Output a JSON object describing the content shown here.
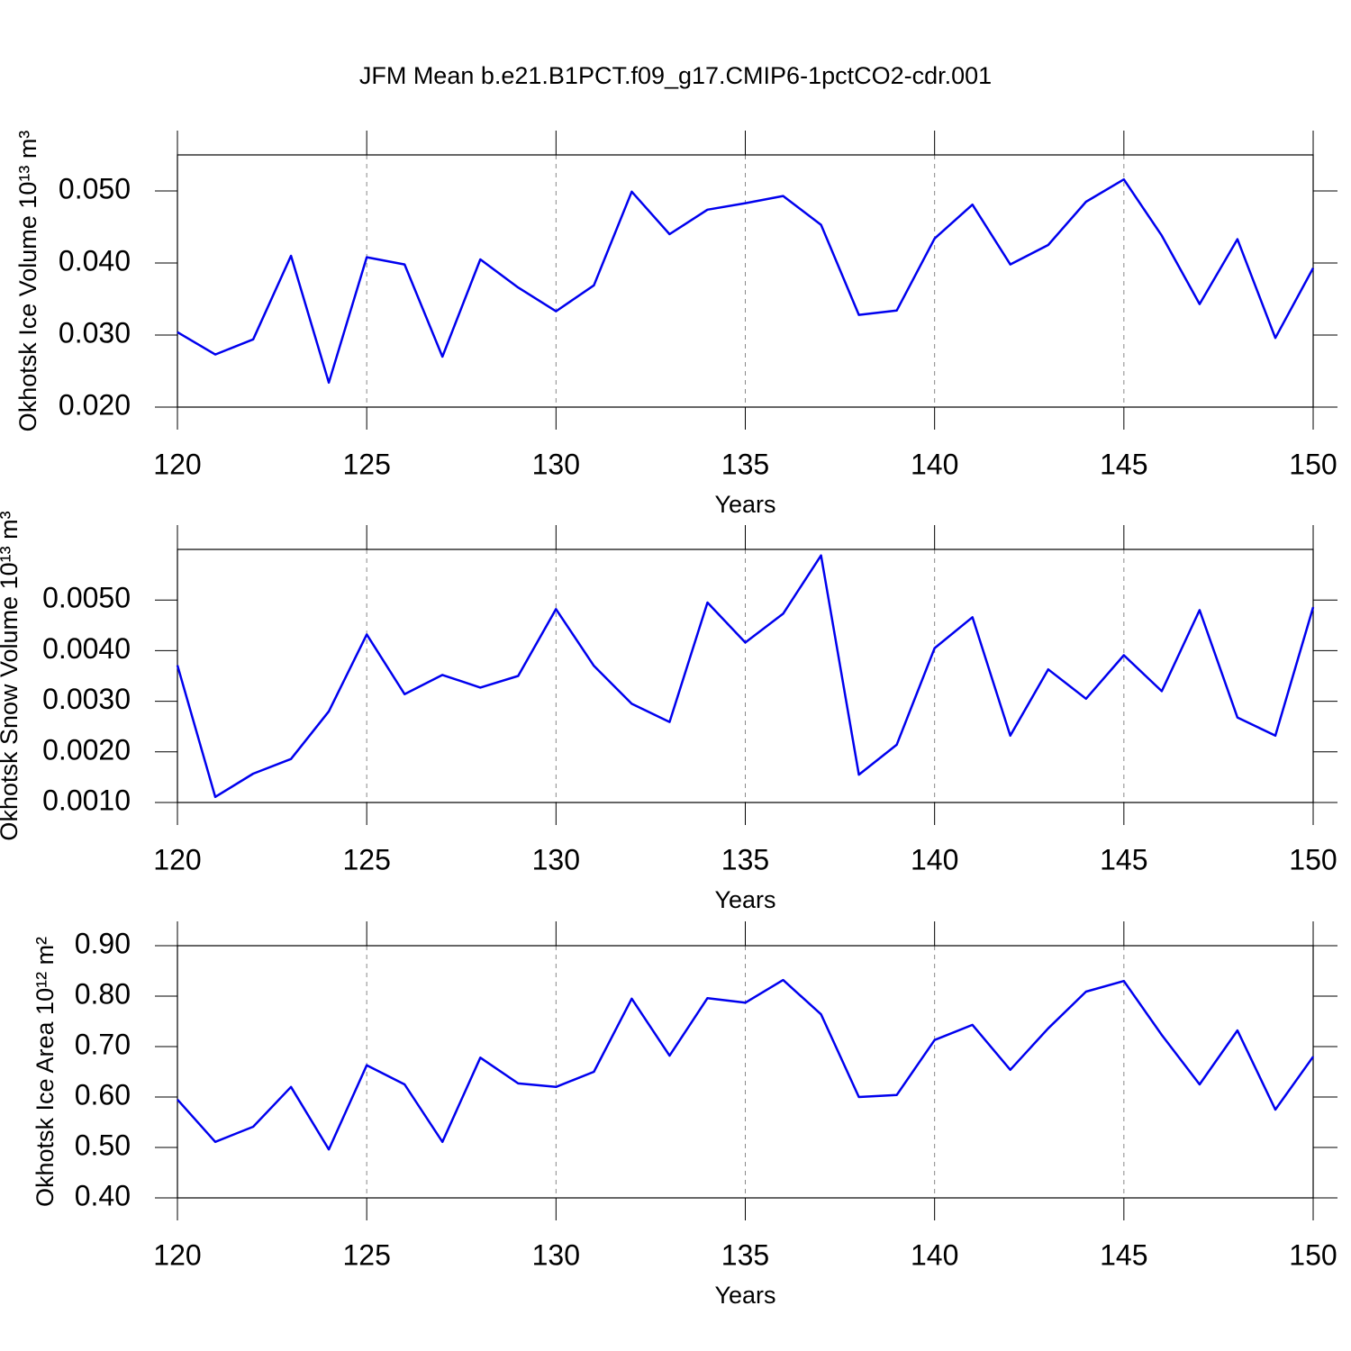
{
  "title": "JFM Mean b.e21.B1PCT.f09_g17.CMIP6-1pctCO2-cdr.001",
  "chart_data": [
    {
      "type": "line",
      "xlabel": "Years",
      "ylabel": "Okhotsk Ice Volume 10¹³ m³",
      "color": "#0000ee",
      "xgrid": true,
      "x": [
        120,
        121,
        122,
        123,
        124,
        125,
        126,
        127,
        128,
        129,
        130,
        131,
        132,
        133,
        134,
        135,
        136,
        137,
        138,
        139,
        140,
        141,
        142,
        143,
        144,
        145,
        146,
        147,
        148,
        149,
        150
      ],
      "values": [
        0.0304,
        0.0273,
        0.0294,
        0.041,
        0.0234,
        0.0408,
        0.0398,
        0.027,
        0.0405,
        0.0366,
        0.0333,
        0.0369,
        0.0499,
        0.044,
        0.0474,
        0.0483,
        0.0493,
        0.0453,
        0.0328,
        0.0334,
        0.0434,
        0.0481,
        0.0398,
        0.0425,
        0.0485,
        0.0516,
        0.0438,
        0.0343,
        0.0433,
        0.0296,
        0.0393
      ],
      "xlim": [
        120,
        150
      ],
      "xticks": [
        120,
        125,
        130,
        135,
        140,
        145,
        150
      ],
      "ylim": [
        0.02,
        0.055
      ],
      "yticks": [
        {
          "value": 0.02,
          "label": "0.020"
        },
        {
          "value": 0.03,
          "label": "0.030"
        },
        {
          "value": 0.04,
          "label": "0.040"
        },
        {
          "value": 0.05,
          "label": "0.050"
        }
      ]
    },
    {
      "type": "line",
      "xlabel": "Years",
      "ylabel": "Okhotsk Snow Volume 10¹³ m³",
      "color": "#0000ee",
      "xgrid": true,
      "x": [
        120,
        121,
        122,
        123,
        124,
        125,
        126,
        127,
        128,
        129,
        130,
        131,
        132,
        133,
        134,
        135,
        136,
        137,
        138,
        139,
        140,
        141,
        142,
        143,
        144,
        145,
        146,
        147,
        148,
        149,
        150
      ],
      "values": [
        0.00371,
        0.00111,
        0.00157,
        0.00186,
        0.0028,
        0.00432,
        0.00314,
        0.00352,
        0.00327,
        0.0035,
        0.00482,
        0.0037,
        0.00295,
        0.00259,
        0.00495,
        0.00416,
        0.00473,
        0.00588,
        0.00155,
        0.00214,
        0.00405,
        0.00466,
        0.00232,
        0.00363,
        0.00305,
        0.00391,
        0.0032,
        0.0048,
        0.00268,
        0.00232,
        0.00486
      ],
      "xlim": [
        120,
        150
      ],
      "xticks": [
        120,
        125,
        130,
        135,
        140,
        145,
        150
      ],
      "ylim": [
        0.001,
        0.006
      ],
      "yticks": [
        {
          "value": 0.001,
          "label": "0.0010"
        },
        {
          "value": 0.002,
          "label": "0.0020"
        },
        {
          "value": 0.003,
          "label": "0.0030"
        },
        {
          "value": 0.004,
          "label": "0.0040"
        },
        {
          "value": 0.005,
          "label": "0.0050"
        }
      ]
    },
    {
      "type": "line",
      "xlabel": "Years",
      "ylabel": "Okhotsk Ice Area 10¹² m²",
      "color": "#0000ee",
      "xgrid": true,
      "x": [
        120,
        121,
        122,
        123,
        124,
        125,
        126,
        127,
        128,
        129,
        130,
        131,
        132,
        133,
        134,
        135,
        136,
        137,
        138,
        139,
        140,
        141,
        142,
        143,
        144,
        145,
        146,
        147,
        148,
        149,
        150
      ],
      "values": [
        0.595,
        0.511,
        0.541,
        0.62,
        0.496,
        0.663,
        0.625,
        0.511,
        0.678,
        0.627,
        0.62,
        0.65,
        0.795,
        0.682,
        0.796,
        0.787,
        0.832,
        0.764,
        0.6,
        0.604,
        0.713,
        0.743,
        0.654,
        0.736,
        0.809,
        0.83,
        0.723,
        0.625,
        0.732,
        0.575,
        0.68
      ],
      "xlim": [
        120,
        150
      ],
      "xticks": [
        120,
        125,
        130,
        135,
        140,
        145,
        150
      ],
      "ylim": [
        0.4,
        0.9
      ],
      "yticks": [
        {
          "value": 0.4,
          "label": "0.40"
        },
        {
          "value": 0.5,
          "label": "0.50"
        },
        {
          "value": 0.6,
          "label": "0.60"
        },
        {
          "value": 0.7,
          "label": "0.70"
        },
        {
          "value": 0.8,
          "label": "0.80"
        },
        {
          "value": 0.9,
          "label": "0.90"
        }
      ]
    }
  ]
}
